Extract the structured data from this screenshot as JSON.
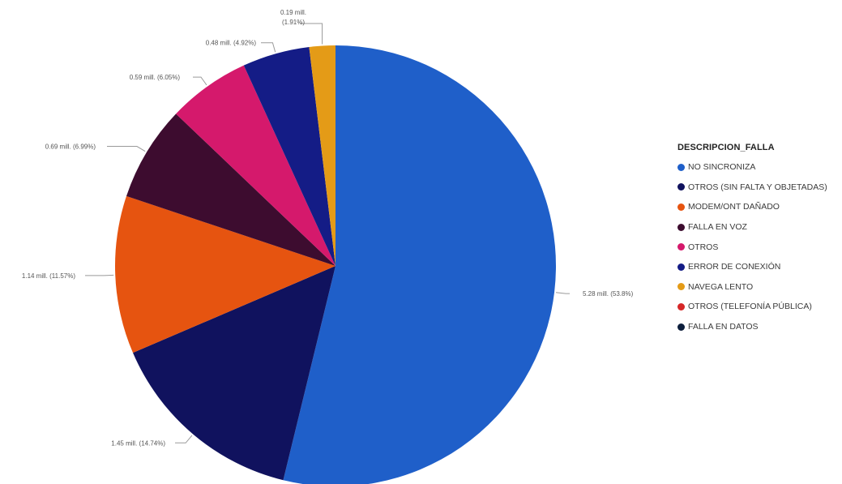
{
  "chart_data": {
    "type": "pie",
    "legend": {
      "title": "DESCRIPCION_FALLA",
      "placement": "right"
    },
    "slices": [
      {
        "name": "NO SINCRONIZA",
        "value": 5.28,
        "percent": 53.8,
        "label": "5.28 mill. (53.8%)",
        "color": "#1f5fc9"
      },
      {
        "name": "OTROS (SIN FALTA Y OBJETADAS)",
        "value": 1.45,
        "percent": 14.74,
        "label": "1.45 mill. (14.74%)",
        "color": "#10125e"
      },
      {
        "name": "MODEM/ONT DAÑADO",
        "value": 1.14,
        "percent": 11.57,
        "label": "1.14 mill. (11.57%)",
        "color": "#e65410"
      },
      {
        "name": "FALLA EN  VOZ",
        "value": 0.69,
        "percent": 6.99,
        "label": "0.69 mill. (6.99%)",
        "color": "#3d0c2f"
      },
      {
        "name": "OTROS",
        "value": 0.59,
        "percent": 6.05,
        "label": "0.59 mill. (6.05%)",
        "color": "#d5196c"
      },
      {
        "name": "ERROR DE CONEXIÓN",
        "value": 0.48,
        "percent": 4.92,
        "label": "0.48 mill. (4.92%)",
        "color": "#141c86"
      },
      {
        "name": "NAVEGA LENTO",
        "value": 0.19,
        "percent": 1.91,
        "label": [
          "0.19 mill.",
          "(1.91%)"
        ],
        "color": "#e49b17"
      },
      {
        "name": "OTROS (TELEFONÍA PÚBLICA)",
        "value": 0,
        "percent": 0,
        "label": "",
        "color": "#d62728"
      },
      {
        "name": "FALLA EN DATOS",
        "value": 0,
        "percent": 0,
        "label": "",
        "color": "#0d1f3c"
      }
    ]
  }
}
